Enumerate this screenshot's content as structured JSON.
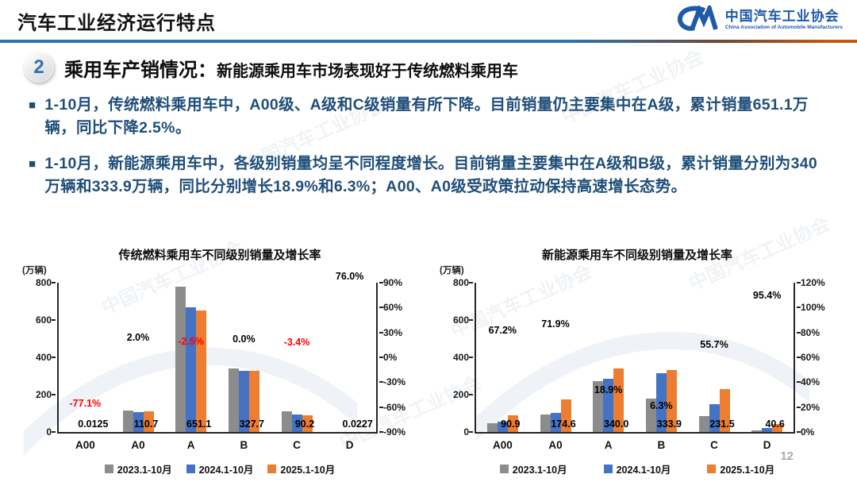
{
  "header": {
    "title": "汽车工业经济运行特点",
    "logo": {
      "org_cn": "中国汽车工业协会",
      "org_en": "China Association of Automobile Manufacturers"
    }
  },
  "section": {
    "number": "2",
    "title": "乘用车产销情况：",
    "subtitle": "新能源乘用车市场表现好于传统燃料乘用车"
  },
  "bullets": [
    {
      "text": "1-10月，传统燃料乘用车中，A00级、A级和C级销量有所下降。目前销量仍主要集中在A级，累计销量651.1万辆，同比下降2.5%。"
    },
    {
      "text": "1-10月，新能源乘用车中，各级别销量均呈不同程度增长。目前销量主要集中在A级和B级，累计销量分别为340万辆和333.9万辆，同比分别增长18.9%和6.3%；A00、A0级受政策拉动保持高速增长态势。"
    }
  ],
  "watermark": "中国汽车工业协会",
  "page_number": "12",
  "colors": {
    "divider_blue": "#2E74B5",
    "divider_orange": "#C55A11",
    "text_blue": "#1F4E79",
    "logo_blue": "#1E5AA8",
    "negative_red": "#FF0000",
    "series_gray": "#8C8C8C",
    "series_blue": "#4472C4",
    "series_orange": "#ED7D31"
  },
  "chart_data": [
    {
      "type": "bar",
      "title": "传统燃料乘用车不同级别销量及增长率",
      "unit_label": "(万辆)",
      "categories": [
        "A00",
        "A0",
        "A",
        "B",
        "C",
        "D"
      ],
      "series": [
        {
          "name": "2023.1-10月",
          "color": "#8C8C8C",
          "values": [
            0.06,
            114,
            779,
            341,
            112,
            0.02
          ]
        },
        {
          "name": "2024.1-10月",
          "color": "#4472C4",
          "values": [
            0.05,
            108.5,
            667.8,
            327.7,
            93.4,
            0.013
          ]
        },
        {
          "name": "2025.1-10月",
          "color": "#ED7D31",
          "values": [
            0.0125,
            110.7,
            651.1,
            327.7,
            90.2,
            0.0227
          ]
        }
      ],
      "value_labels": [
        "0.0125",
        "110.7",
        "651.1",
        "327.7",
        "90.2",
        "0.0227"
      ],
      "growth_labels": [
        {
          "text": "-77.1%",
          "value": -77.1,
          "color": "#FF0000"
        },
        {
          "text": "2.0%",
          "value": 2.0,
          "color": "#000000"
        },
        {
          "text": "-2.5%",
          "value": -2.5,
          "color": "#FF0000"
        },
        {
          "text": "0.0%",
          "value": 0.0,
          "color": "#000000"
        },
        {
          "text": "-3.4%",
          "value": -3.4,
          "color": "#FF0000"
        },
        {
          "text": "76.0%",
          "value": 76.0,
          "color": "#000000"
        }
      ],
      "left_axis": {
        "min": 0,
        "max": 800,
        "ticks": [
          800,
          600,
          400,
          200,
          0
        ]
      },
      "right_axis": {
        "min": -90,
        "max": 90,
        "ticks": [
          90,
          60,
          30,
          0,
          -30,
          -60,
          -90
        ],
        "suffix": "%"
      },
      "legend_position": "bottom",
      "grid": false
    },
    {
      "type": "bar",
      "title": "新能源乘用车不同级别销量及增长率",
      "unit_label": "(万辆)",
      "categories": [
        "A00",
        "A0",
        "A",
        "B",
        "C",
        "D"
      ],
      "series": [
        {
          "name": "2023.1-10月",
          "color": "#8C8C8C",
          "values": [
            45,
            93,
            272,
            177,
            87,
            9
          ]
        },
        {
          "name": "2024.1-10月",
          "color": "#4472C4",
          "values": [
            54.4,
            101.6,
            286,
            314.1,
            148.7,
            20.8
          ]
        },
        {
          "name": "2025.1-10月",
          "color": "#ED7D31",
          "values": [
            90.9,
            174.6,
            340.0,
            333.9,
            231.5,
            40.6
          ]
        }
      ],
      "value_labels": [
        "90.9",
        "174.6",
        "340.0",
        "333.9",
        "231.5",
        "40.6"
      ],
      "growth_labels": [
        {
          "text": "67.2%",
          "value": 67.2,
          "color": "#000000"
        },
        {
          "text": "71.9%",
          "value": 71.9,
          "color": "#000000"
        },
        {
          "text": "18.9%",
          "value": 18.9,
          "color": "#000000"
        },
        {
          "text": "6.3%",
          "value": 6.3,
          "color": "#000000"
        },
        {
          "text": "55.7%",
          "value": 55.7,
          "color": "#000000"
        },
        {
          "text": "95.4%",
          "value": 95.4,
          "color": "#000000"
        }
      ],
      "left_axis": {
        "min": 0,
        "max": 800,
        "ticks": [
          800,
          600,
          400,
          200,
          0
        ]
      },
      "right_axis": {
        "min": 0,
        "max": 120,
        "ticks": [
          120,
          100,
          80,
          60,
          40,
          20,
          0
        ],
        "suffix": "%"
      },
      "legend_position": "bottom",
      "grid": false
    }
  ]
}
